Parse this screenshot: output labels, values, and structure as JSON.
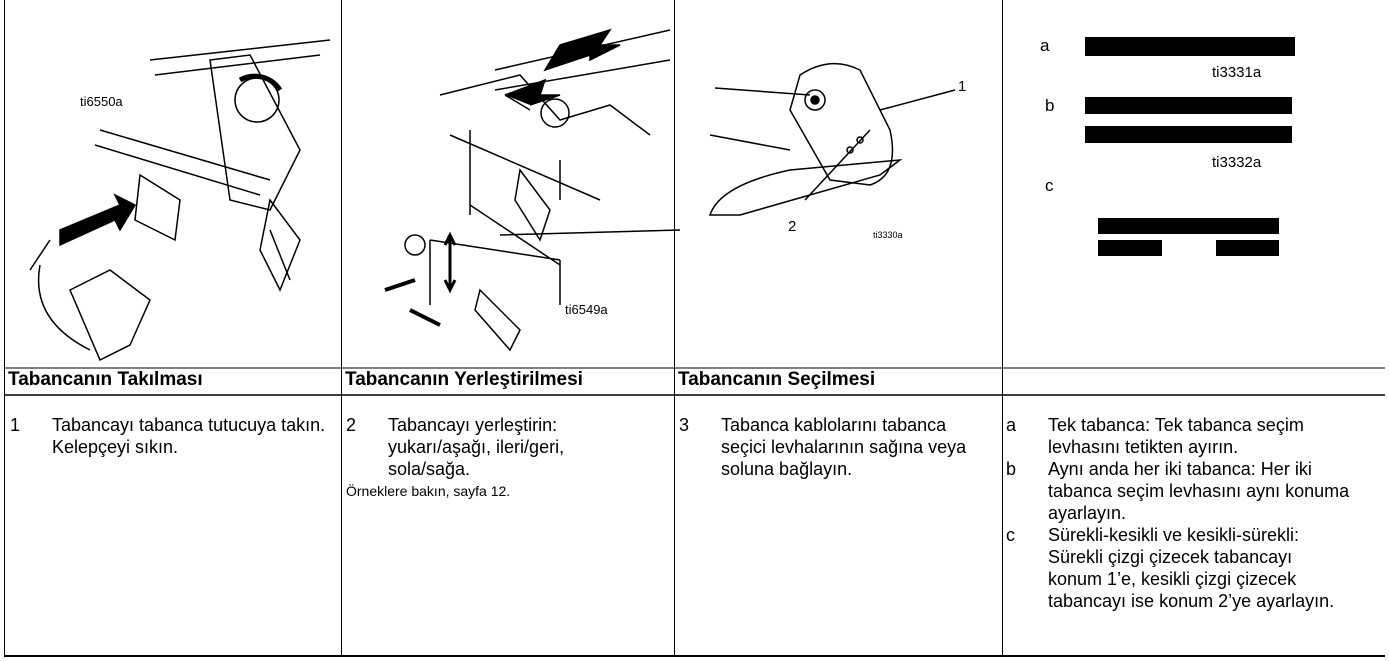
{
  "columns": [
    {
      "figure": {
        "ref": "ti6550a"
      },
      "header": "Tabancanın Takılması",
      "steps": [
        {
          "num": "1",
          "text": "Tabancayı tabanca tutucuya takın. Kelepçeyi sıkın."
        }
      ]
    },
    {
      "figure": {
        "ref": "ti6549a"
      },
      "header": "Tabancanın Yerleştirilmesi",
      "steps": [
        {
          "num": "2",
          "text": "Tabancayı yerleştirin: yukarı/aşağı, ileri/geri, sola/sağa."
        }
      ],
      "note": "Örneklere bakın, sayfa 12."
    },
    {
      "figure": {
        "ref": "ti3330a",
        "callouts": [
          "1",
          "2"
        ]
      },
      "header": "Tabancanın Seçilmesi",
      "steps": [
        {
          "num": "3",
          "text": "Tabanca kablolarını tabanca seçici levhalarının sağına veya soluna bağlayın."
        }
      ]
    },
    {
      "figure": {
        "labels": [
          "a",
          "b",
          "c"
        ],
        "refs": [
          "ti3331a",
          "ti3332a"
        ]
      },
      "steps": [
        {
          "num": "a",
          "text": "Tek tabanca: Tek tabanca seçim levhasını tetikten ayırın."
        },
        {
          "num": "b",
          "text": "Aynı anda her iki tabanca: Her iki tabanca seçim levhasını aynı konuma ayarlayın."
        },
        {
          "num": "c",
          "text": "Sürekli-kesikli ve kesikli-sürekli: Sürekli çizgi çizecek tabancayı konum 1’e, kesikli çizgi çizecek tabancayı ise konum 2’ye ayarlayın."
        }
      ]
    }
  ]
}
